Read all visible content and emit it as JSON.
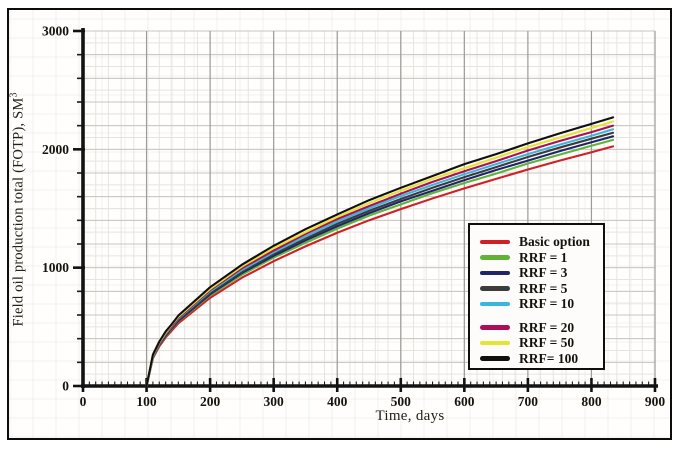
{
  "chart_data": {
    "type": "line",
    "title": "",
    "xlabel": "Time, days",
    "ylabel": "Field oil production total (FOTP), SM",
    "ylabel_sup": "3",
    "xlim": [
      0,
      900
    ],
    "ylim": [
      0,
      3000
    ],
    "xticks": [
      0,
      100,
      200,
      300,
      400,
      500,
      600,
      700,
      800,
      900
    ],
    "yticks": [
      0,
      1000,
      2000,
      3000
    ],
    "x_minor_step": 10,
    "y_minor_step": 200,
    "grid": {
      "on": true,
      "x_fine_step": 20,
      "y_fine_step": 100,
      "x_major_step": 100,
      "y_line_step": 200
    },
    "legend_position": "right-center",
    "x": [
      100,
      110,
      120,
      130,
      140,
      150,
      200,
      250,
      300,
      350,
      400,
      450,
      500,
      550,
      600,
      650,
      700,
      750,
      800,
      834
    ],
    "series": [
      {
        "name": "Basic option",
        "color": "#d02026",
        "values": [
          0,
          235,
          335,
          410,
          470,
          530,
          745,
          915,
          1055,
          1180,
          1295,
          1400,
          1495,
          1585,
          1670,
          1750,
          1830,
          1905,
          1975,
          2025
        ]
      },
      {
        "name": "RRF = 1",
        "color": "#5fb437",
        "values": [
          0,
          240,
          345,
          420,
          485,
          545,
          765,
          940,
          1085,
          1210,
          1330,
          1440,
          1535,
          1630,
          1715,
          1795,
          1880,
          1955,
          2030,
          2080
        ]
      },
      {
        "name": "RRF = 3",
        "color": "#20256b",
        "values": [
          0,
          245,
          350,
          425,
          490,
          550,
          775,
          955,
          1100,
          1230,
          1350,
          1460,
          1560,
          1650,
          1740,
          1825,
          1905,
          1985,
          2060,
          2110
        ]
      },
      {
        "name": "RRF = 5",
        "color": "#3c3c3c",
        "values": [
          0,
          250,
          355,
          435,
          495,
          560,
          785,
          965,
          1115,
          1245,
          1370,
          1480,
          1580,
          1675,
          1765,
          1850,
          1935,
          2015,
          2090,
          2140
        ]
      },
      {
        "name": "RRF = 10",
        "color": "#38b6dd",
        "values": [
          0,
          250,
          360,
          440,
          505,
          570,
          800,
          980,
          1130,
          1265,
          1390,
          1500,
          1605,
          1700,
          1790,
          1875,
          1960,
          2040,
          2115,
          2170
        ]
      },
      {
        "name": "RRF = 20",
        "color": "#ad0f55",
        "values": [
          0,
          255,
          365,
          445,
          510,
          575,
          810,
          995,
          1145,
          1285,
          1410,
          1520,
          1625,
          1725,
          1815,
          1900,
          1990,
          2070,
          2145,
          2200
        ]
      },
      {
        "name": "RRF = 50",
        "color": "#e8e233",
        "values": [
          0,
          260,
          370,
          450,
          520,
          585,
          820,
          1010,
          1165,
          1300,
          1430,
          1545,
          1650,
          1750,
          1840,
          1930,
          2020,
          2100,
          2180,
          2235
        ]
      },
      {
        "name": "RRF= 100",
        "color": "#101010",
        "values": [
          0,
          265,
          375,
          460,
          525,
          595,
          835,
          1025,
          1185,
          1325,
          1450,
          1570,
          1675,
          1775,
          1875,
          1960,
          2050,
          2135,
          2215,
          2270
        ]
      }
    ],
    "legend_group_gap_before": "RRF = 20"
  }
}
